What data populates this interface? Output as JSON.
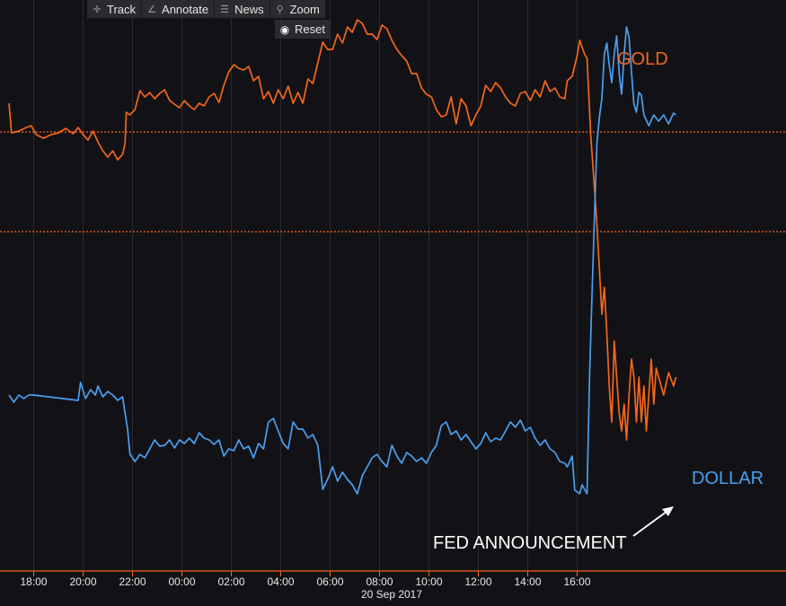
{
  "toolbar": {
    "items": [
      {
        "label": "Track",
        "icon": "crosshair-icon"
      },
      {
        "label": "Annotate",
        "icon": "pen-icon"
      },
      {
        "label": "News",
        "icon": "newspaper-icon"
      },
      {
        "label": "Zoom",
        "icon": "magnifier-icon"
      }
    ],
    "reset_label": "Reset"
  },
  "colors": {
    "background": "#121216",
    "gold": "#f5661a",
    "dollar": "#4a9ff0",
    "axis": "#f5661a",
    "grid": "#2a2a2e",
    "text": "#e8e8e8"
  },
  "chart_data": {
    "type": "line",
    "date_label": "20 Sep 2017",
    "x_ticks": [
      "18:00",
      "20:00",
      "22:00",
      "00:00",
      "02:00",
      "04:00",
      "06:00",
      "08:00",
      "10:00",
      "12:00",
      "14:00",
      "16:00"
    ],
    "reference_lines": [
      "gold-prior-level",
      "dollar-prior-level"
    ],
    "annotation": "FED ANNOUNCEMENT",
    "series": [
      {
        "name": "GOLD",
        "color": "#f5661a",
        "points": [
          [
            17.0,
            115
          ],
          [
            17.1,
            148
          ],
          [
            17.4,
            146
          ],
          [
            17.7,
            142
          ],
          [
            17.9,
            140
          ],
          [
            18.1,
            150
          ],
          [
            18.4,
            154
          ],
          [
            18.7,
            150
          ],
          [
            19.0,
            148
          ],
          [
            19.3,
            143
          ],
          [
            19.6,
            149
          ],
          [
            19.8,
            142
          ],
          [
            20.0,
            150
          ],
          [
            20.2,
            156
          ],
          [
            20.4,
            146
          ],
          [
            20.6,
            158
          ],
          [
            20.8,
            168
          ],
          [
            21.0,
            175
          ],
          [
            21.2,
            168
          ],
          [
            21.4,
            178
          ],
          [
            21.6,
            172
          ],
          [
            21.7,
            160
          ],
          [
            21.75,
            125
          ],
          [
            21.9,
            128
          ],
          [
            22.1,
            122
          ],
          [
            22.3,
            101
          ],
          [
            22.5,
            108
          ],
          [
            22.7,
            103
          ],
          [
            22.9,
            110
          ],
          [
            23.1,
            104
          ],
          [
            23.3,
            100
          ],
          [
            23.5,
            112
          ],
          [
            23.7,
            116
          ],
          [
            23.9,
            120
          ],
          [
            24.1,
            112
          ],
          [
            24.3,
            118
          ],
          [
            24.5,
            122
          ],
          [
            24.7,
            115
          ],
          [
            24.9,
            118
          ],
          [
            25.1,
            108
          ],
          [
            25.3,
            104
          ],
          [
            25.5,
            114
          ],
          [
            25.7,
            95
          ],
          [
            25.9,
            80
          ],
          [
            26.1,
            72
          ],
          [
            26.3,
            76
          ],
          [
            26.5,
            78
          ],
          [
            26.7,
            74
          ],
          [
            26.9,
            90
          ],
          [
            27.1,
            85
          ],
          [
            27.3,
            110
          ],
          [
            27.5,
            102
          ],
          [
            27.7,
            115
          ],
          [
            27.9,
            100
          ],
          [
            28.1,
            110
          ],
          [
            28.3,
            96
          ],
          [
            28.5,
            115
          ],
          [
            28.7,
            103
          ],
          [
            28.9,
            115
          ],
          [
            29.1,
            88
          ],
          [
            29.3,
            93
          ],
          [
            29.5,
            70
          ],
          [
            29.7,
            47
          ],
          [
            29.9,
            55
          ],
          [
            30.1,
            55
          ],
          [
            30.3,
            38
          ],
          [
            30.5,
            48
          ],
          [
            30.7,
            30
          ],
          [
            30.9,
            36
          ],
          [
            31.1,
            22
          ],
          [
            31.3,
            26
          ],
          [
            31.5,
            38
          ],
          [
            31.7,
            38
          ],
          [
            31.9,
            44
          ],
          [
            32.1,
            28
          ],
          [
            32.3,
            32
          ],
          [
            32.5,
            45
          ],
          [
            32.7,
            55
          ],
          [
            32.9,
            62
          ],
          [
            33.1,
            68
          ],
          [
            33.3,
            82
          ],
          [
            33.5,
            82
          ],
          [
            33.7,
            98
          ],
          [
            33.9,
            105
          ],
          [
            34.1,
            108
          ],
          [
            34.3,
            122
          ],
          [
            34.5,
            130
          ],
          [
            34.7,
            128
          ],
          [
            34.9,
            108
          ],
          [
            35.1,
            138
          ],
          [
            35.3,
            110
          ],
          [
            35.5,
            118
          ],
          [
            35.7,
            140
          ],
          [
            35.9,
            128
          ],
          [
            36.1,
            118
          ],
          [
            36.3,
            95
          ],
          [
            36.5,
            102
          ],
          [
            36.7,
            92
          ],
          [
            36.9,
            98
          ],
          [
            37.1,
            108
          ],
          [
            37.3,
            115
          ],
          [
            37.5,
            118
          ],
          [
            37.7,
            104
          ],
          [
            37.9,
            102
          ],
          [
            38.1,
            112
          ],
          [
            38.3,
            100
          ],
          [
            38.5,
            108
          ],
          [
            38.7,
            90
          ],
          [
            38.9,
            102
          ],
          [
            39.1,
            98
          ],
          [
            39.3,
            108
          ],
          [
            39.5,
            110
          ],
          [
            39.6,
            90
          ],
          [
            39.8,
            85
          ],
          [
            40.0,
            62
          ],
          [
            40.1,
            45
          ],
          [
            40.3,
            60
          ],
          [
            40.4,
            65
          ],
          [
            40.55,
            150
          ],
          [
            40.7,
            210
          ],
          [
            40.8,
            250
          ],
          [
            40.9,
            300
          ],
          [
            41.0,
            350
          ],
          [
            41.1,
            320
          ],
          [
            41.2,
            370
          ],
          [
            41.3,
            430
          ],
          [
            41.4,
            470
          ],
          [
            41.5,
            380
          ],
          [
            41.6,
            420
          ],
          [
            41.7,
            460
          ],
          [
            41.8,
            480
          ],
          [
            41.9,
            450
          ],
          [
            42.0,
            490
          ],
          [
            42.1,
            440
          ],
          [
            42.2,
            400
          ],
          [
            42.3,
            420
          ],
          [
            42.4,
            470
          ],
          [
            42.5,
            420
          ],
          [
            42.6,
            470
          ],
          [
            42.7,
            430
          ],
          [
            42.8,
            480
          ],
          [
            42.9,
            440
          ],
          [
            43.0,
            400
          ],
          [
            43.1,
            450
          ],
          [
            43.2,
            410
          ],
          [
            43.3,
            420
          ],
          [
            43.5,
            440
          ],
          [
            43.7,
            415
          ],
          [
            43.9,
            430
          ],
          [
            44.0,
            420
          ]
        ]
      },
      {
        "name": "DOLLAR",
        "color": "#4a9ff0",
        "points": [
          [
            17.0,
            440
          ],
          [
            17.2,
            448
          ],
          [
            17.4,
            440
          ],
          [
            17.6,
            444
          ],
          [
            17.8,
            440
          ],
          [
            18.0,
            440
          ],
          [
            19.8,
            446
          ],
          [
            19.9,
            426
          ],
          [
            20.1,
            444
          ],
          [
            20.3,
            434
          ],
          [
            20.5,
            440
          ],
          [
            20.6,
            430
          ],
          [
            20.8,
            442
          ],
          [
            21.0,
            436
          ],
          [
            21.2,
            440
          ],
          [
            21.4,
            446
          ],
          [
            21.6,
            442
          ],
          [
            21.7,
            460
          ],
          [
            21.8,
            478
          ],
          [
            21.9,
            506
          ],
          [
            22.1,
            514
          ],
          [
            22.3,
            506
          ],
          [
            22.5,
            510
          ],
          [
            22.7,
            500
          ],
          [
            22.9,
            490
          ],
          [
            23.1,
            497
          ],
          [
            23.3,
            496
          ],
          [
            23.5,
            490
          ],
          [
            23.7,
            499
          ],
          [
            23.9,
            490
          ],
          [
            24.1,
            494
          ],
          [
            24.3,
            488
          ],
          [
            24.5,
            494
          ],
          [
            24.7,
            482
          ],
          [
            24.9,
            488
          ],
          [
            25.1,
            490
          ],
          [
            25.3,
            495
          ],
          [
            25.5,
            490
          ],
          [
            25.7,
            508
          ],
          [
            25.9,
            500
          ],
          [
            26.1,
            502
          ],
          [
            26.3,
            490
          ],
          [
            26.5,
            500
          ],
          [
            26.7,
            497
          ],
          [
            26.9,
            510
          ],
          [
            27.1,
            494
          ],
          [
            27.3,
            500
          ],
          [
            27.5,
            470
          ],
          [
            27.7,
            466
          ],
          [
            27.9,
            480
          ],
          [
            28.1,
            494
          ],
          [
            28.3,
            500
          ],
          [
            28.5,
            470
          ],
          [
            28.7,
            478
          ],
          [
            28.9,
            478
          ],
          [
            29.1,
            488
          ],
          [
            29.3,
            484
          ],
          [
            29.5,
            496
          ],
          [
            29.7,
            545
          ],
          [
            29.9,
            534
          ],
          [
            30.1,
            520
          ],
          [
            30.3,
            536
          ],
          [
            30.5,
            526
          ],
          [
            30.7,
            534
          ],
          [
            30.9,
            540
          ],
          [
            31.1,
            550
          ],
          [
            31.3,
            530
          ],
          [
            31.5,
            520
          ],
          [
            31.7,
            510
          ],
          [
            31.9,
            506
          ],
          [
            32.1,
            514
          ],
          [
            32.3,
            520
          ],
          [
            32.5,
            496
          ],
          [
            32.7,
            508
          ],
          [
            32.9,
            516
          ],
          [
            33.1,
            504
          ],
          [
            33.3,
            508
          ],
          [
            33.5,
            514
          ],
          [
            33.7,
            510
          ],
          [
            33.9,
            516
          ],
          [
            34.1,
            504
          ],
          [
            34.3,
            496
          ],
          [
            34.5,
            474
          ],
          [
            34.7,
            470
          ],
          [
            34.9,
            484
          ],
          [
            35.1,
            480
          ],
          [
            35.3,
            490
          ],
          [
            35.5,
            484
          ],
          [
            35.7,
            492
          ],
          [
            35.9,
            500
          ],
          [
            36.1,
            494
          ],
          [
            36.3,
            482
          ],
          [
            36.5,
            492
          ],
          [
            36.7,
            488
          ],
          [
            36.9,
            490
          ],
          [
            37.1,
            480
          ],
          [
            37.3,
            470
          ],
          [
            37.5,
            476
          ],
          [
            37.7,
            468
          ],
          [
            37.9,
            480
          ],
          [
            38.1,
            476
          ],
          [
            38.3,
            488
          ],
          [
            38.5,
            496
          ],
          [
            38.7,
            490
          ],
          [
            38.9,
            500
          ],
          [
            39.1,
            504
          ],
          [
            39.3,
            514
          ],
          [
            39.5,
            516
          ],
          [
            39.6,
            520
          ],
          [
            39.8,
            508
          ],
          [
            39.9,
            546
          ],
          [
            40.1,
            550
          ],
          [
            40.2,
            540
          ],
          [
            40.4,
            550
          ],
          [
            40.5,
            420
          ],
          [
            40.6,
            330
          ],
          [
            40.7,
            240
          ],
          [
            40.8,
            160
          ],
          [
            40.9,
            130
          ],
          [
            41.0,
            110
          ],
          [
            41.1,
            60
          ],
          [
            41.2,
            48
          ],
          [
            41.3,
            72
          ],
          [
            41.4,
            92
          ],
          [
            41.5,
            60
          ],
          [
            41.6,
            40
          ],
          [
            41.7,
            82
          ],
          [
            41.8,
            105
          ],
          [
            41.9,
            60
          ],
          [
            42.0,
            30
          ],
          [
            42.1,
            42
          ],
          [
            42.2,
            80
          ],
          [
            42.3,
            116
          ],
          [
            42.4,
            125
          ],
          [
            42.5,
            103
          ],
          [
            42.6,
            106
          ],
          [
            42.7,
            128
          ],
          [
            42.9,
            140
          ],
          [
            43.1,
            128
          ],
          [
            43.3,
            135
          ],
          [
            43.5,
            128
          ],
          [
            43.7,
            138
          ],
          [
            43.9,
            126
          ],
          [
            44.0,
            128
          ]
        ]
      }
    ]
  }
}
